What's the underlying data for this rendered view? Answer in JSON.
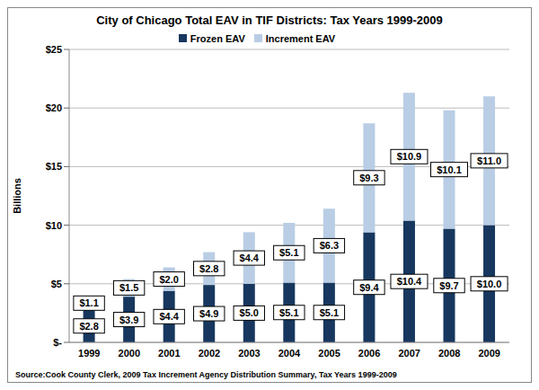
{
  "chart_data": {
    "type": "bar",
    "title": "City of Chicago Total EAV in TIF Districts: Tax Years 1999-2009",
    "y_label": "Billions",
    "source": "Source:Cook County Clerk, 2009 Tax Increment Agency Distribution Summary, Tax Years 1999-2009",
    "categories": [
      "1999",
      "2000",
      "2001",
      "2002",
      "2003",
      "2004",
      "2005",
      "2006",
      "2007",
      "2008",
      "2009"
    ],
    "series": [
      {
        "name": "Frozen EAV",
        "color": "#17375e",
        "values": [
          2.8,
          3.9,
          4.4,
          4.9,
          5.0,
          5.1,
          5.1,
          9.4,
          10.4,
          9.7,
          10.0
        ],
        "value_labels": [
          "$2.8",
          "$3.9",
          "$4.4",
          "$4.9",
          "$5.0",
          "$5.1",
          "$5.1",
          "$9.4",
          "$10.4",
          "$9.7",
          "$10.0"
        ]
      },
      {
        "name": "Increment EAV",
        "color": "#b9cde5",
        "values": [
          1.1,
          1.5,
          2.0,
          2.8,
          4.4,
          5.1,
          6.3,
          9.3,
          10.9,
          10.1,
          11.0
        ],
        "value_labels": [
          "$1.1",
          "$1.5",
          "$2.0",
          "$2.8",
          "$4.4",
          "$5.1",
          "$6.3",
          "$9.3",
          "$10.9",
          "$10.1",
          "$11.0"
        ]
      }
    ],
    "ylim": [
      0,
      25
    ],
    "yticks": [
      {
        "value": 0,
        "label": "$-"
      },
      {
        "value": 5,
        "label": "$5"
      },
      {
        "value": 10,
        "label": "$10"
      },
      {
        "value": 15,
        "label": "$15"
      },
      {
        "value": 20,
        "label": "$20"
      },
      {
        "value": 25,
        "label": "$25"
      }
    ],
    "stacked": true,
    "data_labels": true,
    "grid": true,
    "legend": "top"
  }
}
